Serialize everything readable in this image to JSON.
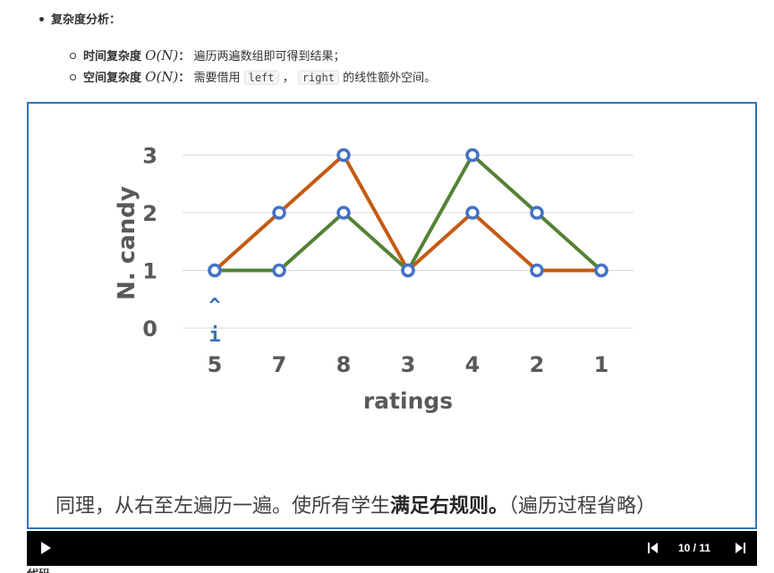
{
  "heading": {
    "text": "复杂度分析："
  },
  "items": [
    {
      "label": "时间复杂度",
      "math": "O(N)",
      "sep": "：",
      "desc": "遍历两遍数组即可得到结果；"
    },
    {
      "label": "空间复杂度",
      "math": "O(N)",
      "sep": "：",
      "desc_before": "需要借用",
      "code1": "left",
      "comma": "，",
      "code2": "right",
      "desc_after": "的线性额外空间。"
    }
  ],
  "chart_data": {
    "type": "line",
    "categories": [
      "5",
      "7",
      "8",
      "3",
      "4",
      "2",
      "1"
    ],
    "xlabel": "ratings",
    "ylabel": "N. candy",
    "ylim": [
      0,
      3
    ],
    "yticks": [
      "0",
      "1",
      "2",
      "3"
    ],
    "grid": true,
    "series": [
      {
        "values": [
          1,
          2,
          3,
          1,
          2,
          1,
          1
        ],
        "color": "#c55a11"
      },
      {
        "values": [
          1,
          1,
          2,
          1,
          3,
          2,
          1
        ],
        "color": "#548235"
      }
    ],
    "marker_color": "#4472c4",
    "pointer": {
      "caret": "^",
      "label": "i",
      "category_index": 0
    }
  },
  "caption": {
    "normal": "同理，从右至左遍历一遍。使所有学生",
    "bold": "满足右规则。",
    "tail": "（遍历过程省略）"
  },
  "player": {
    "counter": "10 / 11"
  },
  "next_section": {
    "text": "代码"
  }
}
